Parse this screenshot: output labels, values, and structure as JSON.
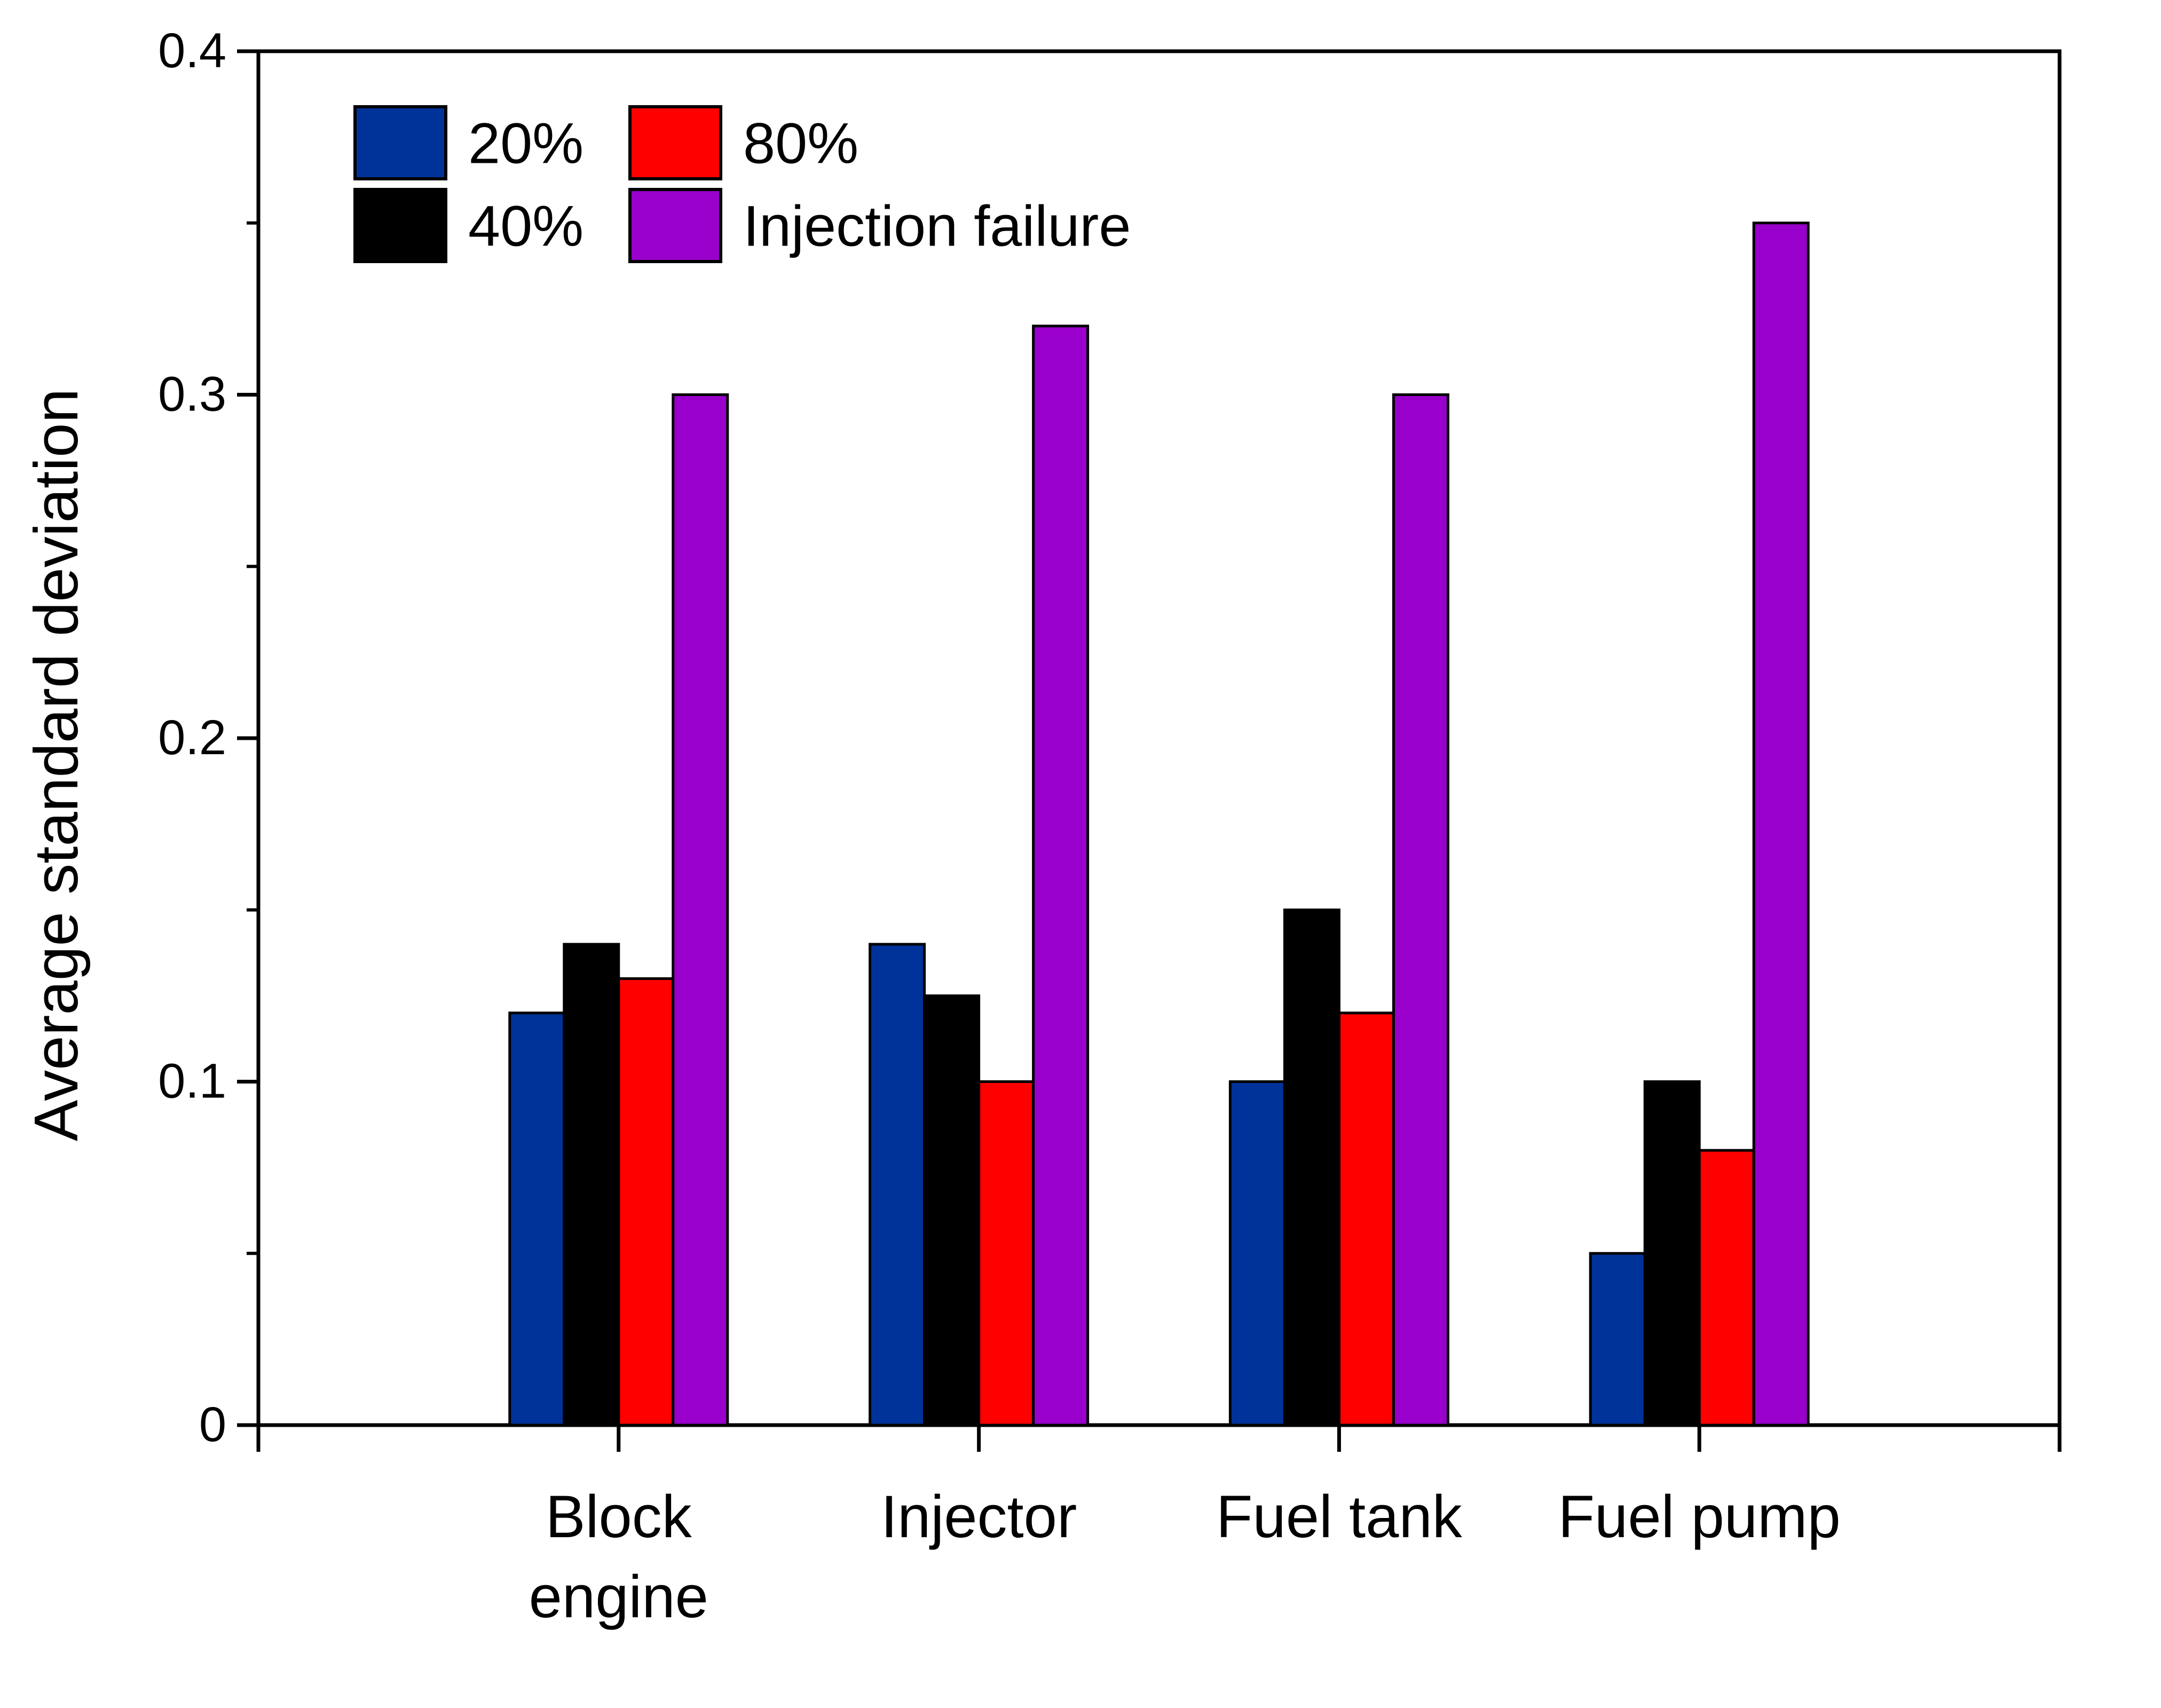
{
  "chart_data": {
    "type": "bar",
    "title": "",
    "xlabel": "",
    "ylabel": "Average standard deviation",
    "ylim": [
      0,
      0.4
    ],
    "y_ticks": [
      "0",
      "0.1",
      "0.2",
      "0.3",
      "0.4"
    ],
    "categories": [
      [
        "Block",
        "engine"
      ],
      [
        "Injector"
      ],
      [
        "Fuel tank"
      ],
      [
        "Fuel pump"
      ]
    ],
    "series": [
      {
        "name": "20%",
        "color": "#003399",
        "values": [
          0.12,
          0.14,
          0.1,
          0.05
        ]
      },
      {
        "name": "40%",
        "color": "#000000",
        "values": [
          0.14,
          0.125,
          0.15,
          0.1
        ]
      },
      {
        "name": "80%",
        "color": "#ff0000",
        "values": [
          0.13,
          0.1,
          0.12,
          0.08
        ]
      },
      {
        "name": "Injection failure",
        "color": "#9900cc",
        "values": [
          0.3,
          0.32,
          0.3,
          0.35
        ]
      }
    ],
    "legend": {
      "position": "top-left",
      "columns": 2
    },
    "grid": false
  }
}
